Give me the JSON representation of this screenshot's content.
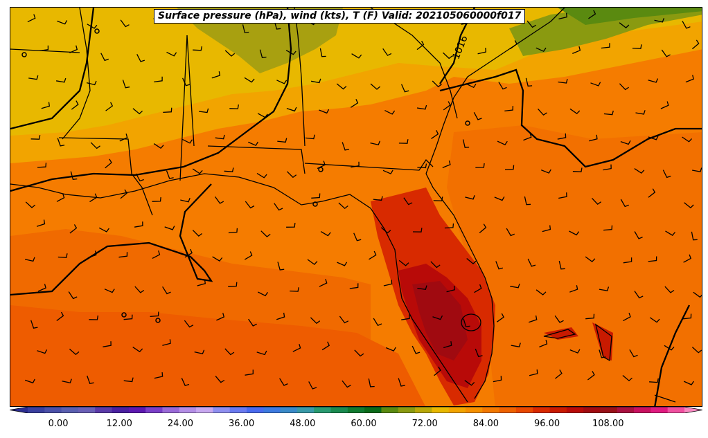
{
  "title": "Surface pressure (hPa), wind (kts), T (F) Valid: 202105060000f017",
  "isobar_label": "1016",
  "colorbar": {
    "tick_labels": [
      "0.00",
      "12.00",
      "24.00",
      "36.00",
      "48.00",
      "60.00",
      "72.00",
      "84.00",
      "96.00",
      "108.00"
    ],
    "min": -6,
    "max": 123,
    "colors": [
      "#2b2c8f",
      "#3a3f9e",
      "#4b50a8",
      "#5a5fb0",
      "#6a5fb6",
      "#5a3aa8",
      "#4a20a0",
      "#5c18b0",
      "#7a3fc8",
      "#9a6ad8",
      "#b48ee6",
      "#c8a8f0",
      "#8f8ff0",
      "#6a7af0",
      "#4a6aee",
      "#3d7ae0",
      "#3a8ac8",
      "#3a9aa8",
      "#2a9a70",
      "#1a8a50",
      "#107a30",
      "#0a6a1a",
      "#5a8a10",
      "#8a9a10",
      "#b8a808",
      "#e8b800",
      "#f2a400",
      "#f59000",
      "#f27800",
      "#ee6200",
      "#e84800",
      "#d82a00",
      "#c81a00",
      "#b80a08",
      "#a00a10",
      "#981018",
      "#a81040",
      "#c81060",
      "#e01a80",
      "#f050a0",
      "#f888c0"
    ]
  }
}
